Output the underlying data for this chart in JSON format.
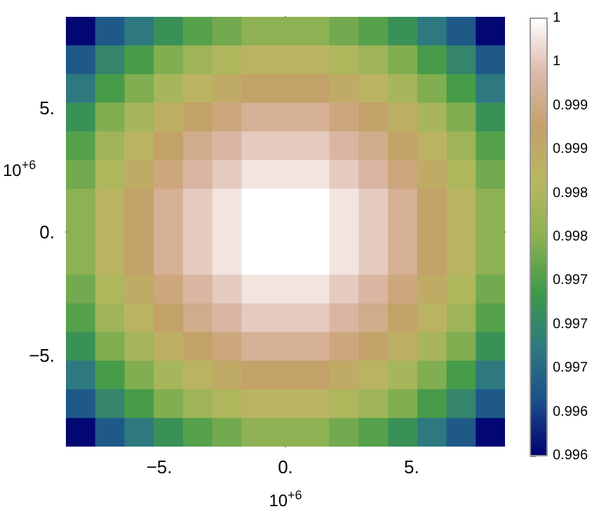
{
  "chart_data": {
    "type": "heatmap",
    "xlabel": "10$^{+6}$",
    "ylabel": "10$^{+6}$",
    "x": [
      -8.12,
      -6.96,
      -5.8,
      -4.64,
      -3.48,
      -2.32,
      -1.16,
      0,
      1.16,
      2.32,
      3.48,
      4.64,
      5.8,
      6.96,
      8.12
    ],
    "y": [
      8.12,
      6.96,
      5.8,
      4.64,
      3.48,
      2.32,
      1.16,
      0,
      -1.16,
      -2.32,
      -3.48,
      -4.64,
      -5.8,
      -6.96,
      -8.12
    ],
    "xlim": [
      -8.7,
      8.7
    ],
    "ylim": [
      -8.7,
      8.7
    ],
    "xticks": [
      {
        "value": -5,
        "label": "−5."
      },
      {
        "value": 0,
        "label": "0."
      },
      {
        "value": 5,
        "label": "5."
      }
    ],
    "yticks": [
      {
        "value": -5,
        "label": "−5."
      },
      {
        "value": 0,
        "label": "0."
      },
      {
        "value": 5,
        "label": "5."
      }
    ],
    "colors": [
      "#000070",
      "#1b4f8a",
      "#2e7a80",
      "#3f9a48",
      "#8cb152",
      "#b8b860",
      "#c4a06a",
      "#ddb8aa",
      "#ffffff"
    ],
    "clim": [
      0.99575,
      1
    ],
    "cticks": [
      {
        "value": 0.99575,
        "label": "0.996"
      },
      {
        "value": 0.996175,
        "label": "0.996"
      },
      {
        "value": 0.9966,
        "label": "0.997"
      },
      {
        "value": 0.997025,
        "label": "0.997"
      },
      {
        "value": 0.99745,
        "label": "0.997"
      },
      {
        "value": 0.997875,
        "label": "0.998"
      },
      {
        "value": 0.9983,
        "label": "0.998"
      },
      {
        "value": 0.998725,
        "label": "0.999"
      },
      {
        "value": 0.99915,
        "label": "0.999"
      },
      {
        "value": 0.999575,
        "label": "1"
      },
      {
        "value": 1,
        "label": "1"
      }
    ],
    "cells": [
      [
        0.9958,
        0.9964,
        0.9968,
        0.9972,
        0.9975,
        0.9977,
        0.9979,
        0.9979,
        0.9979,
        0.9977,
        0.9975,
        0.9972,
        0.9968,
        0.9964,
        0.9958
      ],
      [
        0.9964,
        0.997,
        0.9974,
        0.9978,
        0.9981,
        0.9983,
        0.9985,
        0.9985,
        0.9985,
        0.9983,
        0.9981,
        0.9978,
        0.9974,
        0.997,
        0.9964
      ],
      [
        0.9968,
        0.9974,
        0.9978,
        0.9982,
        0.9985,
        0.9987,
        0.9989,
        0.9989,
        0.9989,
        0.9987,
        0.9985,
        0.9982,
        0.9978,
        0.9974,
        0.9968
      ],
      [
        0.9972,
        0.9978,
        0.9982,
        0.9986,
        0.9989,
        0.9991,
        0.9993,
        0.9993,
        0.9993,
        0.9991,
        0.9989,
        0.9986,
        0.9982,
        0.9978,
        0.9972
      ],
      [
        0.9975,
        0.9981,
        0.9985,
        0.9989,
        0.9992,
        0.9994,
        0.9996,
        0.9996,
        0.9996,
        0.9994,
        0.9992,
        0.9989,
        0.9985,
        0.9981,
        0.9975
      ],
      [
        0.9977,
        0.9983,
        0.9987,
        0.9991,
        0.9994,
        0.9996,
        0.9998,
        0.9998,
        0.9998,
        0.9996,
        0.9994,
        0.9991,
        0.9987,
        0.9983,
        0.9977
      ],
      [
        0.9979,
        0.9985,
        0.9989,
        0.9993,
        0.9996,
        0.9998,
        1,
        1,
        1,
        0.9998,
        0.9996,
        0.9993,
        0.9989,
        0.9985,
        0.9979
      ],
      [
        0.9979,
        0.9985,
        0.9989,
        0.9993,
        0.9996,
        0.9998,
        1,
        1,
        1,
        0.9998,
        0.9996,
        0.9993,
        0.9989,
        0.9985,
        0.9979
      ],
      [
        0.9979,
        0.9985,
        0.9989,
        0.9993,
        0.9996,
        0.9998,
        1,
        1,
        1,
        0.9998,
        0.9996,
        0.9993,
        0.9989,
        0.9985,
        0.9979
      ],
      [
        0.9977,
        0.9983,
        0.9987,
        0.9991,
        0.9994,
        0.9996,
        0.9998,
        0.9998,
        0.9998,
        0.9996,
        0.9994,
        0.9991,
        0.9987,
        0.9983,
        0.9977
      ],
      [
        0.9975,
        0.9981,
        0.9985,
        0.9989,
        0.9992,
        0.9994,
        0.9996,
        0.9996,
        0.9996,
        0.9994,
        0.9992,
        0.9989,
        0.9985,
        0.9981,
        0.9975
      ],
      [
        0.9972,
        0.9978,
        0.9982,
        0.9986,
        0.9989,
        0.9991,
        0.9993,
        0.9993,
        0.9993,
        0.9991,
        0.9989,
        0.9986,
        0.9982,
        0.9978,
        0.9972
      ],
      [
        0.9968,
        0.9974,
        0.9978,
        0.9982,
        0.9985,
        0.9987,
        0.9989,
        0.9989,
        0.9989,
        0.9987,
        0.9985,
        0.9982,
        0.9978,
        0.9974,
        0.9968
      ],
      [
        0.9964,
        0.997,
        0.9974,
        0.9978,
        0.9981,
        0.9983,
        0.9985,
        0.9985,
        0.9985,
        0.9983,
        0.9981,
        0.9978,
        0.9974,
        0.997,
        0.9964
      ],
      [
        0.9958,
        0.9964,
        0.9968,
        0.9972,
        0.9975,
        0.9977,
        0.9979,
        0.9979,
        0.9979,
        0.9977,
        0.9975,
        0.9972,
        0.9968,
        0.9964,
        0.9958
      ]
    ]
  }
}
